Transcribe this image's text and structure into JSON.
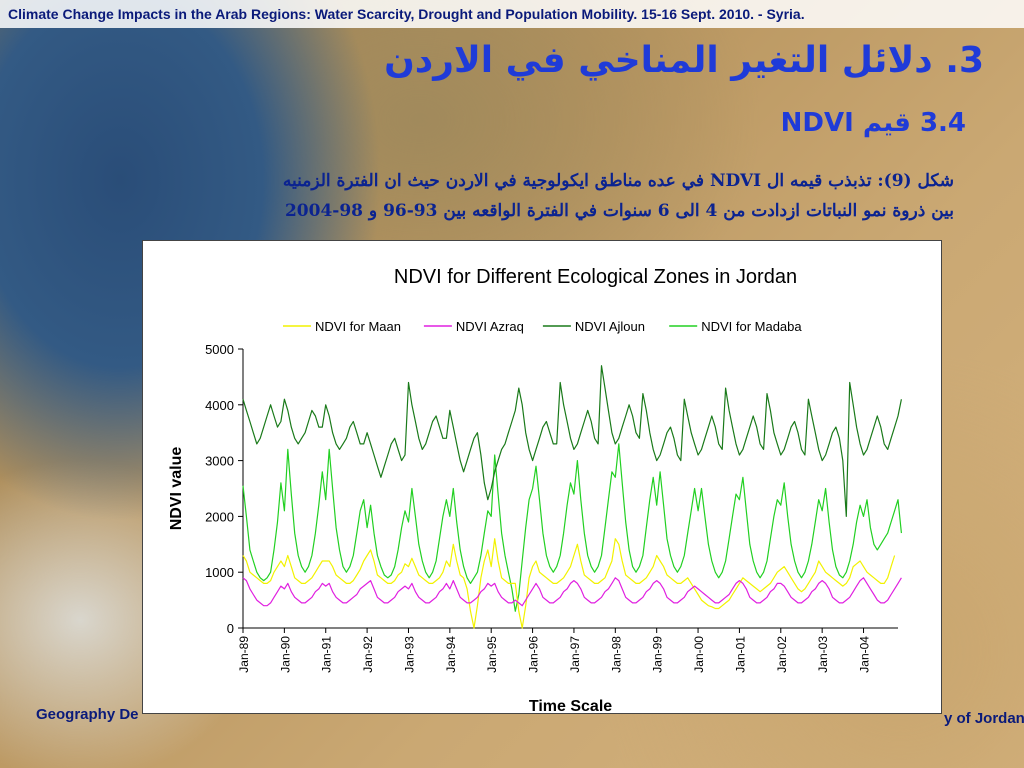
{
  "header": {
    "text": "Climate Change Impacts in the Arab Regions: Water Scarcity, Drought and Population Mobility. 15-16 Sept. 2010. - Syria."
  },
  "slide": {
    "title": "3. دلائل التغير المناخي في الاردن",
    "subtitle": "3.4 قيم NDVI",
    "caption_line1": "شكل (9): تذبذب قيمه ال NDVI في عده مناطق ايكولوجية في الاردن حيث ان الفترة الزمنيه",
    "caption_line2": "بين ذروة نمو النباتات ازدادت من 4 الى 6 سنوات في الفترة الواقعه بين 93-96 و 98-2004"
  },
  "footer": {
    "left": "Geography De",
    "right": "y of Jordan"
  },
  "colors": {
    "maan": "#f2f200",
    "azraq": "#e020e0",
    "ajloun": "#1a7a1a",
    "madaba": "#22d022"
  },
  "chart_data": {
    "type": "line",
    "title": "NDVI for Different Ecological Zones in Jordan",
    "xlabel": "Time Scale",
    "ylabel": "NDVI value",
    "ylim": [
      0,
      5000
    ],
    "yticks": [
      0,
      1000,
      2000,
      3000,
      4000,
      5000
    ],
    "x_start": "Jan-89",
    "x_end": "Dec-04",
    "points_per_year": 12,
    "x_tick_labels": [
      "Jan-89",
      "Jan-90",
      "Jan-91",
      "Jan-92",
      "Jan-93",
      "Jan-94",
      "Jan-95",
      "Jan-96",
      "Jan-97",
      "Jan-98",
      "Jan-99",
      "Jan-00",
      "Jan-01",
      "Jan-02",
      "Jan-03",
      "Jan-04"
    ],
    "legend_position": "top",
    "grid": false,
    "series": [
      {
        "name": "NDVI for Maan",
        "values": [
          1300,
          1200,
          1000,
          950,
          900,
          850,
          800,
          800,
          850,
          1000,
          1100,
          1200,
          1100,
          1300,
          1100,
          900,
          850,
          800,
          800,
          850,
          900,
          1000,
          1100,
          1200,
          1200,
          1200,
          1100,
          950,
          900,
          850,
          800,
          800,
          850,
          950,
          1050,
          1200,
          1300,
          1400,
          1200,
          950,
          900,
          850,
          800,
          800,
          850,
          950,
          1000,
          1150,
          1100,
          1250,
          1100,
          950,
          900,
          850,
          800,
          800,
          850,
          900,
          1000,
          1200,
          1100,
          1500,
          1200,
          950,
          900,
          700,
          300,
          0,
          400,
          900,
          1200,
          1400,
          1100,
          1600,
          1200,
          900,
          850,
          800,
          800,
          800,
          300,
          0,
          400,
          900,
          1100,
          1200,
          1000,
          950,
          900,
          850,
          800,
          800,
          850,
          900,
          1000,
          1100,
          1300,
          1500,
          1200,
          950,
          900,
          850,
          800,
          800,
          850,
          900,
          1050,
          1200,
          1600,
          1500,
          1200,
          950,
          900,
          850,
          800,
          800,
          850,
          900,
          1000,
          1100,
          1300,
          1200,
          1100,
          950,
          900,
          850,
          800,
          800,
          850,
          900,
          800,
          700,
          600,
          500,
          450,
          400,
          380,
          350,
          350,
          400,
          450,
          500,
          600,
          700,
          800,
          900,
          850,
          800,
          750,
          700,
          650,
          700,
          750,
          800,
          900,
          1000,
          1050,
          1100,
          1000,
          900,
          800,
          700,
          650,
          700,
          800,
          900,
          1000,
          1200,
          1100,
          1000,
          950,
          900,
          850,
          800,
          750,
          800,
          900,
          1100,
          1150,
          1200,
          1100,
          1000,
          950,
          900,
          850,
          800,
          800,
          900,
          1100,
          1300
        ]
      },
      {
        "name": "NDVI Azraq",
        "values": [
          900,
          850,
          700,
          600,
          500,
          450,
          400,
          400,
          450,
          550,
          650,
          750,
          700,
          800,
          650,
          550,
          500,
          450,
          450,
          500,
          550,
          650,
          700,
          800,
          750,
          800,
          650,
          550,
          500,
          450,
          450,
          500,
          550,
          600,
          700,
          750,
          800,
          850,
          700,
          550,
          500,
          450,
          450,
          500,
          550,
          650,
          700,
          750,
          700,
          800,
          650,
          550,
          500,
          450,
          450,
          500,
          550,
          650,
          700,
          800,
          700,
          850,
          700,
          550,
          500,
          450,
          450,
          500,
          550,
          650,
          700,
          800,
          750,
          800,
          650,
          550,
          500,
          450,
          450,
          500,
          450,
          400,
          500,
          600,
          700,
          800,
          700,
          550,
          500,
          450,
          450,
          500,
          550,
          650,
          700,
          800,
          850,
          800,
          700,
          550,
          500,
          450,
          450,
          500,
          550,
          650,
          700,
          800,
          900,
          850,
          700,
          550,
          500,
          450,
          450,
          500,
          550,
          650,
          700,
          800,
          850,
          800,
          700,
          550,
          500,
          450,
          450,
          500,
          550,
          650,
          700,
          750,
          700,
          650,
          600,
          550,
          500,
          450,
          450,
          500,
          550,
          600,
          700,
          800,
          850,
          800,
          700,
          550,
          500,
          450,
          450,
          500,
          550,
          650,
          700,
          800,
          800,
          750,
          650,
          550,
          500,
          450,
          450,
          500,
          550,
          650,
          700,
          800,
          850,
          800,
          700,
          550,
          500,
          450,
          450,
          500,
          550,
          650,
          750,
          850,
          900,
          800,
          700,
          600,
          500,
          450,
          450,
          500,
          600,
          700,
          800,
          900
        ]
      },
      {
        "name": "NDVI Ajloun",
        "values": [
          4100,
          3900,
          3700,
          3500,
          3300,
          3400,
          3600,
          3800,
          4000,
          3800,
          3600,
          3700,
          4100,
          3900,
          3600,
          3400,
          3300,
          3400,
          3500,
          3700,
          3900,
          3800,
          3600,
          3600,
          4000,
          3800,
          3500,
          3300,
          3200,
          3300,
          3400,
          3600,
          3700,
          3500,
          3300,
          3300,
          3500,
          3300,
          3100,
          2900,
          2700,
          2900,
          3100,
          3300,
          3400,
          3200,
          3000,
          3100,
          4400,
          4000,
          3700,
          3400,
          3200,
          3300,
          3500,
          3700,
          3800,
          3600,
          3400,
          3400,
          3900,
          3600,
          3300,
          3000,
          2800,
          3000,
          3200,
          3400,
          3500,
          3100,
          2600,
          2300,
          2500,
          2800,
          3000,
          3200,
          3300,
          3500,
          3700,
          3900,
          4300,
          4000,
          3500,
          3200,
          3000,
          3200,
          3400,
          3600,
          3700,
          3500,
          3300,
          3300,
          4400,
          4000,
          3700,
          3400,
          3200,
          3300,
          3500,
          3700,
          3900,
          3700,
          3400,
          3300,
          4700,
          4300,
          3900,
          3500,
          3300,
          3400,
          3600,
          3800,
          4000,
          3800,
          3500,
          3400,
          4200,
          3900,
          3500,
          3200,
          3000,
          3100,
          3300,
          3500,
          3600,
          3400,
          3100,
          3000,
          4100,
          3800,
          3500,
          3300,
          3100,
          3200,
          3400,
          3600,
          3800,
          3600,
          3300,
          3200,
          4300,
          3900,
          3600,
          3300,
          3100,
          3200,
          3400,
          3600,
          3800,
          3600,
          3300,
          3200,
          4200,
          3900,
          3500,
          3300,
          3100,
          3200,
          3400,
          3600,
          3700,
          3500,
          3200,
          3100,
          4100,
          3800,
          3500,
          3200,
          3000,
          3100,
          3300,
          3500,
          3600,
          3400,
          3000,
          2000,
          4400,
          4000,
          3600,
          3300,
          3100,
          3200,
          3400,
          3600,
          3800,
          3600,
          3300,
          3200,
          3400,
          3600,
          3800,
          4100
        ]
      },
      {
        "name": "NDVI for Madaba",
        "values": [
          2550,
          2000,
          1400,
          1200,
          1000,
          900,
          850,
          900,
          1000,
          1400,
          1900,
          2600,
          2100,
          3200,
          2400,
          1700,
          1300,
          1100,
          1000,
          1100,
          1300,
          1700,
          2200,
          2800,
          2300,
          3200,
          2500,
          1800,
          1400,
          1100,
          1000,
          1100,
          1300,
          1700,
          2100,
          2300,
          1800,
          2200,
          1700,
          1300,
          1100,
          950,
          900,
          950,
          1100,
          1400,
          1800,
          2100,
          1900,
          2500,
          2000,
          1500,
          1200,
          1000,
          900,
          1000,
          1200,
          1600,
          2000,
          2300,
          2000,
          2500,
          1900,
          1400,
          1100,
          900,
          800,
          900,
          1000,
          1300,
          1700,
          2100,
          2000,
          3100,
          2400,
          1700,
          1300,
          1000,
          700,
          300,
          600,
          1200,
          1800,
          2300,
          2500,
          2900,
          2300,
          1700,
          1300,
          1100,
          1000,
          1100,
          1300,
          1700,
          2200,
          2600,
          2400,
          3000,
          2300,
          1700,
          1300,
          1100,
          1000,
          1100,
          1300,
          1800,
          2300,
          2800,
          2700,
          3300,
          2600,
          1900,
          1400,
          1100,
          1000,
          1100,
          1300,
          1800,
          2300,
          2700,
          2200,
          2800,
          2200,
          1600,
          1300,
          1100,
          1000,
          1100,
          1300,
          1700,
          2100,
          2500,
          2100,
          2500,
          2000,
          1500,
          1200,
          1000,
          900,
          1000,
          1200,
          1600,
          2000,
          2400,
          2300,
          2700,
          2100,
          1500,
          1200,
          1000,
          900,
          1000,
          1200,
          1600,
          2000,
          2300,
          2200,
          2600,
          2000,
          1500,
          1200,
          1000,
          900,
          1000,
          1200,
          1500,
          1900,
          2300,
          2100,
          2500,
          1900,
          1400,
          1100,
          950,
          900,
          1000,
          1200,
          1500,
          1900,
          2200,
          2000,
          2300,
          1800,
          1500,
          1400,
          1500,
          1600,
          1700,
          1900,
          2100,
          2300,
          1700
        ]
      }
    ]
  }
}
